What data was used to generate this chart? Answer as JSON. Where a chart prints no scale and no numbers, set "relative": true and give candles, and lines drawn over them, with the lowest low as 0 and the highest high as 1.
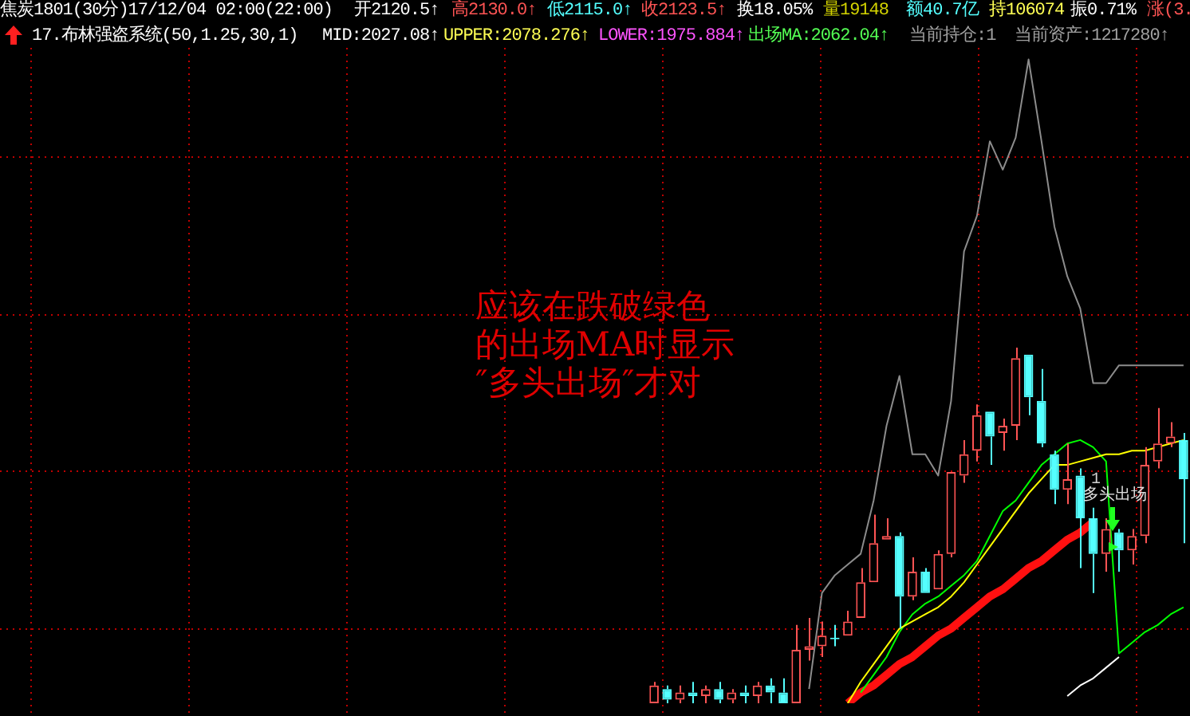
{
  "chart_data": {
    "type": "candlestick",
    "relative": true,
    "grid": true,
    "title": "焦炭1801(30分)17/12/04 02:00(22:00)",
    "subtitle": "17.布林强盗系统(50,1.25,30,1)",
    "annotations": [
      "开2120.5↑",
      "高2130.0↑",
      "低2115.0↑",
      "收2123.5↑",
      "换18.05%",
      "量19148",
      "额40.7亿",
      "持106074",
      "振0.71%",
      "涨(3.",
      "MID:2027.08↑",
      "UPPER:2078.276↑",
      "LOWER:1975.884↑",
      "出场MA:2062.04↑",
      "当前持仓:1",
      "当前资产:1217280↑",
      "应该在跌破绿色",
      "的出场MA时显示",
      "″多头出场″才对",
      "1",
      "多头出场"
    ],
    "categories": [
      null,
      null,
      null,
      null,
      null,
      null,
      null,
      null,
      null,
      null,
      null,
      null,
      null,
      null,
      null,
      null,
      null,
      null,
      null,
      null,
      null,
      null,
      null,
      null,
      null,
      null,
      null,
      null,
      null,
      null,
      null,
      null,
      null,
      null,
      null,
      null,
      null,
      null,
      null,
      null,
      null,
      null
    ],
    "ohlc": [
      [
        0,
        0.06,
        0,
        0.05
      ],
      [
        0.04,
        0.05,
        0,
        0.01
      ],
      [
        0.01,
        0.05,
        0,
        0.03
      ],
      [
        0.03,
        0.06,
        0,
        0.02
      ],
      [
        0.02,
        0.05,
        0,
        0.04
      ],
      [
        0.04,
        0.06,
        0,
        0.01
      ],
      [
        0.01,
        0.04,
        0,
        0.03
      ],
      [
        0.03,
        0.05,
        0,
        0.02
      ],
      [
        0.02,
        0.06,
        0,
        0.05
      ],
      [
        0.05,
        0.07,
        0,
        0.03
      ],
      [
        0.03,
        0.07,
        0,
        0
      ],
      [
        0,
        0.22,
        0,
        0.15
      ],
      [
        0.15,
        0.24,
        0.12,
        0.16
      ],
      [
        0.16,
        0.23,
        0.13,
        0.19
      ],
      [
        0.18,
        0.22,
        0.16,
        0.18
      ],
      [
        0.19,
        0.26,
        0.19,
        0.23
      ],
      [
        0.24,
        0.38,
        0.24,
        0.34
      ],
      [
        0.34,
        0.53,
        0.34,
        0.45
      ],
      [
        0.46,
        0.52,
        0.46,
        0.47
      ],
      [
        0.47,
        0.48,
        0.21,
        0.3
      ],
      [
        0.3,
        0.41,
        0.29,
        0.37
      ],
      [
        0.37,
        0.38,
        0.31,
        0.31
      ],
      [
        0.32,
        0.43,
        0.32,
        0.42
      ],
      [
        0.42,
        0.65,
        0.41,
        0.65
      ],
      [
        0.64,
        0.74,
        0.62,
        0.7
      ],
      [
        0.71,
        0.84,
        0.68,
        0.81
      ],
      [
        0.82,
        0.82,
        0.67,
        0.75
      ],
      [
        0.76,
        0.8,
        0.71,
        0.78
      ],
      [
        0.78,
        1,
        0.74,
        0.97
      ],
      [
        0.98,
        0.98,
        0.81,
        0.86
      ],
      [
        0.85,
        0.94,
        0.72,
        0.73
      ],
      [
        0.7,
        0.71,
        0.56,
        0.6
      ],
      [
        0.6,
        0.73,
        0.56,
        0.63
      ],
      [
        0.64,
        0.66,
        0.38,
        0.52
      ],
      [
        0.52,
        0.55,
        0.31,
        0.42
      ],
      [
        0.42,
        0.52,
        0.37,
        0.49
      ],
      [
        0.48,
        0.49,
        0.37,
        0.43
      ],
      [
        0.43,
        0.49,
        0.39,
        0.47
      ],
      [
        0.47,
        0.72,
        0.45,
        0.67
      ],
      [
        0.68,
        0.83,
        0.66,
        0.73
      ],
      [
        0.73,
        0.79,
        0.72,
        0.75
      ],
      [
        0.74,
        0.76,
        0.45,
        0.63
      ]
    ],
    "colors": [
      "#ff5454",
      "#54ffff",
      "#ff5454",
      "#54ffff",
      "#ff5454",
      "#54ffff",
      "#ff5454",
      "#54ffff",
      "#ff5454",
      "#54ffff",
      "#54ffff",
      "#ff5454",
      "#ff5454",
      "#ff5454",
      "#54ffff",
      "#ff5454",
      "#ff5454",
      "#ff5454",
      "#ff5454",
      "#54ffff",
      "#ff5454",
      "#54ffff",
      "#ff5454",
      "#ff5454",
      "#ff5454",
      "#ff5454",
      "#54ffff",
      "#ff5454",
      "#ff5454",
      "#54ffff",
      "#54ffff",
      "#54ffff",
      "#ff5454",
      "#54ffff",
      "#54ffff",
      "#ff5454",
      "#54ffff",
      "#ff5454",
      "#ff5454",
      "#ff5454",
      "#ff5454",
      "#54ffff"
    ],
    "series": [
      {
        "type": "line",
        "color": "#8c8c8c",
        "values": [
          null,
          null,
          null,
          null,
          null,
          null,
          null,
          null,
          null,
          null,
          null,
          null,
          0.04,
          0.31,
          0.36,
          0.39,
          0.42,
          0.57,
          0.78,
          0.92,
          0.7,
          0.7,
          0.64,
          0.85,
          1.27,
          1.37,
          1.58,
          1.5,
          1.59,
          1.81,
          1.58,
          1.34,
          1.2,
          1.11,
          0.9,
          0.9,
          0.95,
          0.95,
          0.95,
          0.95,
          0.95,
          0.95
        ]
      },
      {
        "type": "line",
        "color": "#ffff00",
        "values": [
          null,
          null,
          null,
          null,
          null,
          null,
          null,
          null,
          null,
          null,
          null,
          null,
          null,
          null,
          null,
          0,
          0.06,
          0.11,
          0.16,
          0.21,
          0.23,
          0.25,
          0.27,
          0.3,
          0.34,
          0.39,
          0.44,
          0.49,
          0.54,
          0.59,
          0.63,
          0.67,
          0.67,
          0.68,
          0.69,
          0.7,
          0.7,
          0.71,
          0.71,
          0.72,
          0.73,
          0.74
        ]
      },
      {
        "type": "line",
        "color": "#00ff00",
        "values": [
          null,
          null,
          null,
          null,
          null,
          null,
          null,
          null,
          null,
          null,
          null,
          null,
          null,
          null,
          null,
          null,
          0.03,
          0.08,
          0.13,
          0.2,
          0.25,
          0.28,
          0.3,
          0.33,
          0.36,
          0.4,
          0.47,
          0.54,
          0.57,
          0.62,
          0.67,
          0.7,
          0.73,
          0.74,
          0.72,
          0.68,
          0.14,
          0.17,
          0.2,
          0.22,
          0.25,
          0.27
        ]
      },
      {
        "type": "line",
        "color": "#ffffff",
        "values": [
          null,
          null,
          null,
          null,
          null,
          null,
          null,
          null,
          null,
          null,
          null,
          null,
          null,
          null,
          null,
          null,
          null,
          null,
          null,
          null,
          null,
          null,
          null,
          null,
          null,
          null,
          null,
          null,
          null,
          null,
          null,
          null,
          0.02,
          0.05,
          0.07,
          0.1,
          0.13,
          null,
          null,
          null,
          null,
          null
        ]
      },
      {
        "type": "line",
        "color": "#ff1010",
        "values": [
          null,
          null,
          null,
          null,
          null,
          null,
          null,
          null,
          null,
          null,
          null,
          null,
          null,
          null,
          null,
          0,
          0.03,
          0.05,
          0.08,
          0.11,
          0.13,
          0.16,
          0.19,
          0.21,
          0.24,
          0.27,
          0.3,
          0.32,
          0.35,
          0.38,
          0.4,
          0.43,
          0.46,
          0.48,
          0.51,
          null,
          null,
          null,
          null,
          null,
          null,
          null
        ]
      }
    ]
  }
}
